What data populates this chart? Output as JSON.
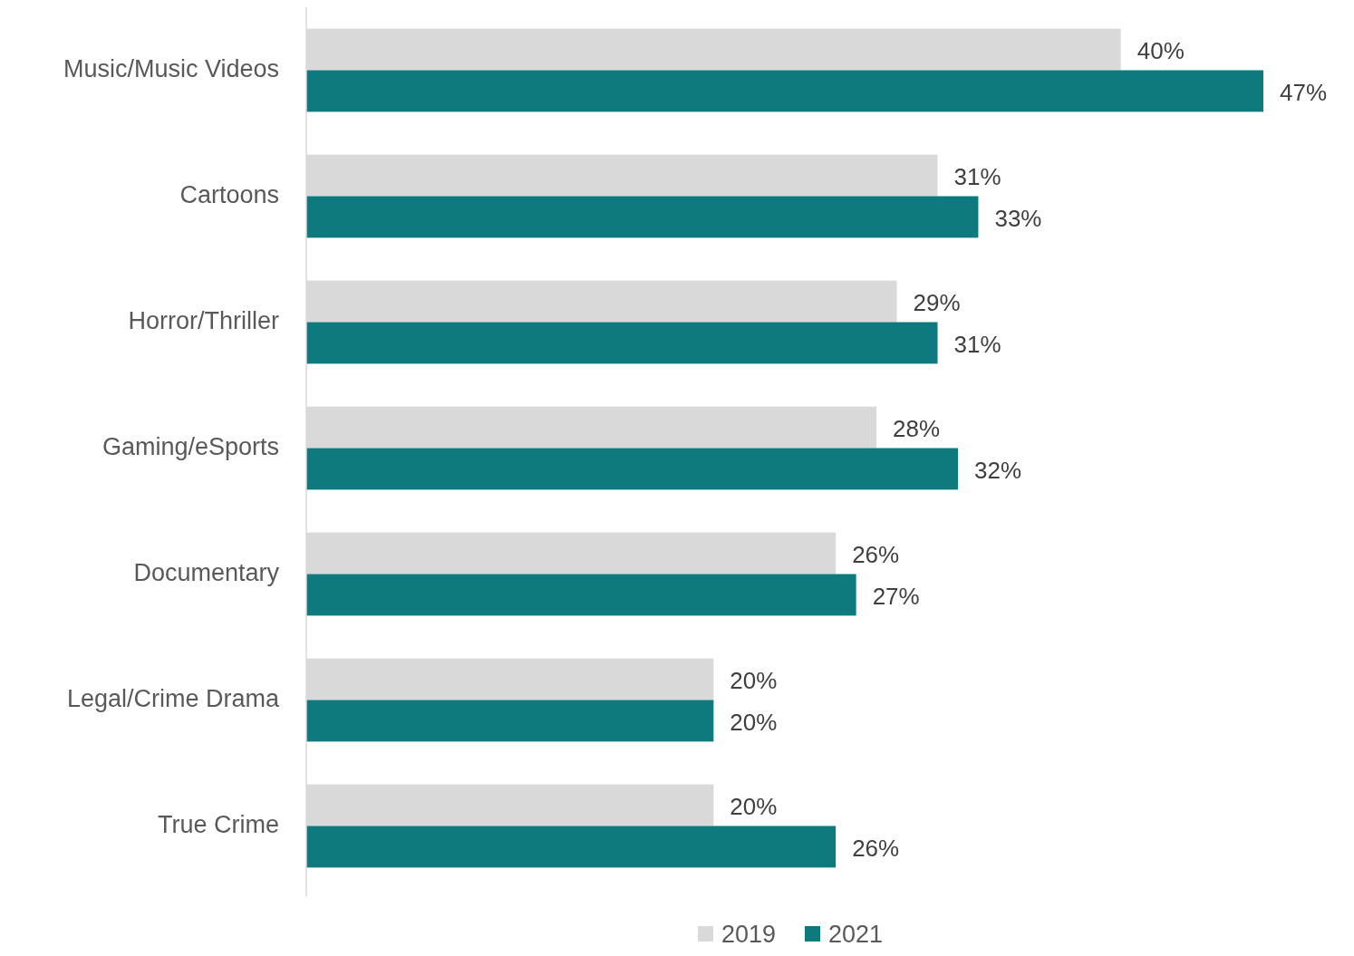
{
  "chart_data": {
    "type": "bar",
    "orientation": "horizontal",
    "categories": [
      "Music/Music Videos",
      "Cartoons",
      "Horror/Thriller",
      "Gaming/eSports",
      "Documentary",
      "Legal/Crime Drama",
      "True Crime"
    ],
    "series": [
      {
        "name": "2019",
        "color": "#d9d9d9",
        "values": [
          40,
          31,
          29,
          28,
          26,
          20,
          20
        ],
        "value_labels": [
          "40%",
          "31%",
          "29%",
          "28%",
          "26%",
          "20%",
          "20%"
        ]
      },
      {
        "name": "2021",
        "color": "#0e7a7e",
        "values": [
          47,
          33,
          31,
          32,
          27,
          20,
          26
        ],
        "value_labels": [
          "47%",
          "33%",
          "31%",
          "32%",
          "27%",
          "20%",
          "26%"
        ]
      }
    ],
    "legend": "bottom"
  }
}
